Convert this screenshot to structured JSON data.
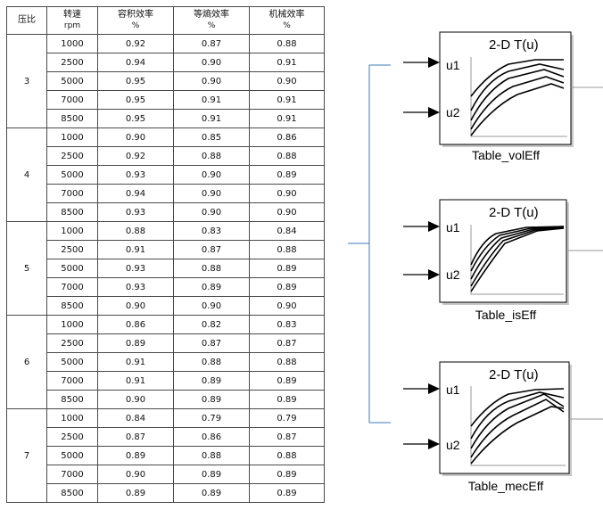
{
  "table": {
    "headers": [
      {
        "line1": "压比",
        "line2": ""
      },
      {
        "line1": "转速",
        "line2": "rpm"
      },
      {
        "line1": "容积效率",
        "line2": "%"
      },
      {
        "line1": "等熵效率",
        "line2": "%"
      },
      {
        "line1": "机械效率",
        "line2": "%"
      }
    ],
    "groups": [
      {
        "ratio": "3",
        "rows": [
          [
            "1000",
            "0.92",
            "0.87",
            "0.88"
          ],
          [
            "2500",
            "0.94",
            "0.90",
            "0.91"
          ],
          [
            "5000",
            "0.95",
            "0.90",
            "0.90"
          ],
          [
            "7000",
            "0.95",
            "0.91",
            "0.91"
          ],
          [
            "8500",
            "0.95",
            "0.91",
            "0.91"
          ]
        ]
      },
      {
        "ratio": "4",
        "rows": [
          [
            "1000",
            "0.90",
            "0.85",
            "0.86"
          ],
          [
            "2500",
            "0.92",
            "0.88",
            "0.88"
          ],
          [
            "5000",
            "0.93",
            "0.90",
            "0.89"
          ],
          [
            "7000",
            "0.94",
            "0.90",
            "0.90"
          ],
          [
            "8500",
            "0.93",
            "0.90",
            "0.90"
          ]
        ]
      },
      {
        "ratio": "5",
        "rows": [
          [
            "1000",
            "0.88",
            "0.83",
            "0.84"
          ],
          [
            "2500",
            "0.91",
            "0.87",
            "0.88"
          ],
          [
            "5000",
            "0.93",
            "0.88",
            "0.89"
          ],
          [
            "7000",
            "0.93",
            "0.89",
            "0.89"
          ],
          [
            "8500",
            "0.90",
            "0.90",
            "0.90"
          ]
        ]
      },
      {
        "ratio": "6",
        "rows": [
          [
            "1000",
            "0.86",
            "0.82",
            "0.83"
          ],
          [
            "2500",
            "0.89",
            "0.87",
            "0.87"
          ],
          [
            "5000",
            "0.91",
            "0.88",
            "0.88"
          ],
          [
            "7000",
            "0.91",
            "0.89",
            "0.89"
          ],
          [
            "8500",
            "0.90",
            "0.89",
            "0.89"
          ]
        ]
      },
      {
        "ratio": "7",
        "rows": [
          [
            "1000",
            "0.84",
            "0.79",
            "0.79"
          ],
          [
            "2500",
            "0.87",
            "0.86",
            "0.87"
          ],
          [
            "5000",
            "0.89",
            "0.88",
            "0.88"
          ],
          [
            "7000",
            "0.90",
            "0.89",
            "0.89"
          ],
          [
            "8500",
            "0.89",
            "0.89",
            "0.89"
          ]
        ]
      }
    ]
  },
  "blocks": [
    {
      "title": "2-D T(u)",
      "in1": "u1",
      "in2": "u2",
      "name": "Table_volEff"
    },
    {
      "title": "2-D T(u)",
      "in1": "u1",
      "in2": "u2",
      "name": "Table_isEff"
    },
    {
      "title": "2-D T(u)",
      "in1": "u1",
      "in2": "u2",
      "name": "Table_mecEff"
    }
  ],
  "colors": {
    "line": "#3d7ab8",
    "block_border": "#000000",
    "shadow": "#c8c8c8"
  }
}
